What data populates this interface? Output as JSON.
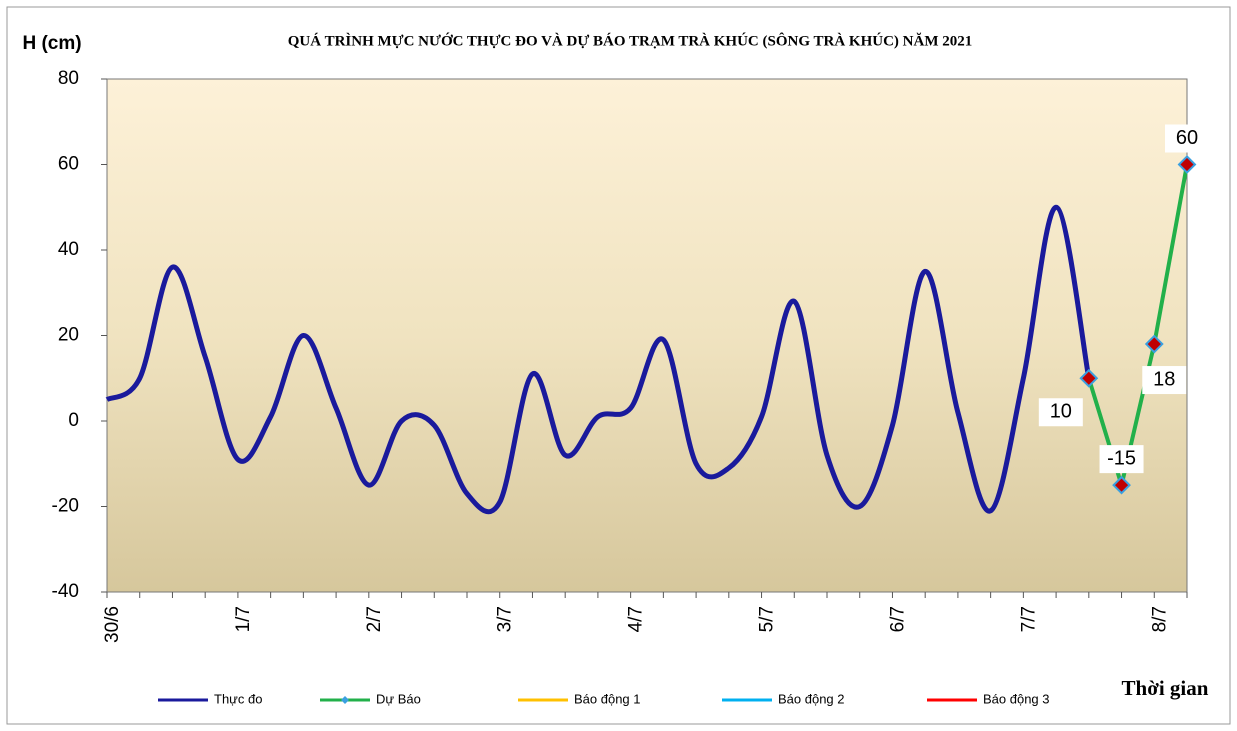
{
  "chart_data": {
    "type": "line",
    "title": "QUÁ TRÌNH MỰC NƯỚC THỰC ĐO VÀ DỰ BÁO TRẠM TRÀ KHÚC (SÔNG TRÀ KHÚC) NĂM 2021",
    "y_label": "H (cm)",
    "x_label": "Thời gian",
    "categories": [
      "30/6",
      null,
      null,
      null,
      "1/7",
      null,
      null,
      null,
      "2/7",
      null,
      null,
      null,
      "3/7",
      null,
      null,
      null,
      "4/7",
      null,
      null,
      null,
      "5/7",
      null,
      null,
      null,
      "6/7",
      null,
      null,
      null,
      "7/7",
      null,
      null,
      null,
      "8/7",
      null
    ],
    "series": [
      {
        "name": "Thực đo",
        "color": "#1a1a9c",
        "values": [
          5,
          10,
          36,
          15,
          -9,
          1,
          20,
          3,
          -15,
          0,
          -1,
          -17,
          -19,
          11,
          -8,
          1,
          3,
          19,
          -10,
          -11,
          1,
          28,
          -8,
          -20,
          -1,
          35,
          2,
          -21,
          10,
          50,
          10,
          null,
          null,
          null
        ]
      },
      {
        "name": "Dự Báo",
        "color": "#22b04a",
        "values": [
          null,
          null,
          null,
          null,
          null,
          null,
          null,
          null,
          null,
          null,
          null,
          null,
          null,
          null,
          null,
          null,
          null,
          null,
          null,
          null,
          null,
          null,
          null,
          null,
          null,
          null,
          null,
          null,
          null,
          null,
          10,
          -15,
          18,
          60
        ]
      },
      {
        "name": "Báo động  1",
        "color": "#ffc000",
        "values": [
          null,
          null,
          null,
          null,
          null,
          null,
          null,
          null,
          null,
          null,
          null,
          null,
          null,
          null,
          null,
          null,
          null,
          null,
          null,
          null,
          null,
          null,
          null,
          null,
          null,
          null,
          null,
          null,
          null,
          null,
          null,
          null,
          null,
          null
        ]
      },
      {
        "name": "Báo động  2",
        "color": "#00b0f0",
        "values": [
          null,
          null,
          null,
          null,
          null,
          null,
          null,
          null,
          null,
          null,
          null,
          null,
          null,
          null,
          null,
          null,
          null,
          null,
          null,
          null,
          null,
          null,
          null,
          null,
          null,
          null,
          null,
          null,
          null,
          null,
          null,
          null,
          null,
          null
        ]
      },
      {
        "name": "Báo động  3",
        "color": "#ff0000",
        "values": [
          null,
          null,
          null,
          null,
          null,
          null,
          null,
          null,
          null,
          null,
          null,
          null,
          null,
          null,
          null,
          null,
          null,
          null,
          null,
          null,
          null,
          null,
          null,
          null,
          null,
          null,
          null,
          null,
          null,
          null,
          null,
          null,
          null,
          null
        ]
      }
    ],
    "ylim": [
      -40,
      80
    ],
    "yticks": [
      -40,
      -20,
      0,
      20,
      40,
      60,
      80
    ],
    "grid": false,
    "legend": "bottom"
  }
}
